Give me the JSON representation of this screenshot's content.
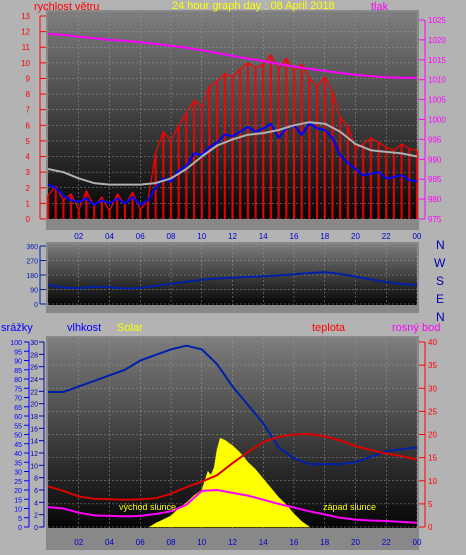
{
  "header": {
    "title": "24 hour graph day : 08 April 2018",
    "wind_label": "rychlost větru",
    "pressure_label": "tlak",
    "compass": [
      "N",
      "W",
      "S",
      "E",
      "N"
    ]
  },
  "lower_labels": {
    "rain": "srážky",
    "humidity": "vlhkost",
    "solar": "Solar",
    "temperature": "teplota",
    "dewpoint": "rosný bod",
    "sunrise": "východ slunce",
    "sunset": "západ slunce"
  },
  "colors": {
    "wind_gust": "#ff0000",
    "wind_avg": "#0000ff",
    "wind_dir_avg": "#b0b0b0",
    "pressure": "#ff00ff",
    "direction": "#0020aa",
    "humidity": "#0020aa",
    "temperature": "#dd0000",
    "dewpoint": "#ff00ff",
    "solar": "#ffff00",
    "rain": "#0000ff"
  },
  "chart_data": [
    {
      "type": "line",
      "name": "wind-pressure",
      "x_ticks": [
        "02",
        "04",
        "06",
        "08",
        "10",
        "12",
        "14",
        "16",
        "18",
        "20",
        "22",
        "00"
      ],
      "y_left_ticks": [
        "0",
        "1",
        "2",
        "3",
        "4",
        "5",
        "6",
        "7",
        "8",
        "9",
        "10",
        "11",
        "12",
        "13"
      ],
      "y_right_ticks": [
        "975",
        "980",
        "985",
        "990",
        "995",
        "1000",
        "1005",
        "1010",
        "1015",
        "1020",
        "1025"
      ],
      "y_left_range": [
        0,
        13
      ],
      "y_right_range": [
        975,
        1026
      ],
      "x_range": [
        0,
        24
      ],
      "series": [
        {
          "name": "rychlost větru",
          "axis": "left",
          "role": "gust",
          "x": [
            0,
            0.5,
            1,
            1.5,
            2,
            2.5,
            3,
            3.5,
            4,
            4.5,
            5,
            5.5,
            6,
            6.5,
            7,
            7.5,
            8,
            8.5,
            9,
            9.5,
            10,
            10.5,
            11,
            11.5,
            12,
            12.5,
            13,
            13.5,
            14,
            14.5,
            15,
            15.5,
            16,
            16.5,
            17,
            17.5,
            18,
            18.5,
            19,
            19.5,
            20,
            20.5,
            21,
            21.5,
            22,
            22.5,
            23,
            23.5,
            24
          ],
          "y": [
            1.5,
            2.1,
            1.2,
            1.6,
            0.6,
            1.8,
            0.8,
            1.4,
            0.5,
            1.6,
            0.9,
            1.7,
            0.6,
            1.2,
            4.2,
            5.6,
            5.0,
            6.0,
            6.8,
            7.6,
            7.2,
            8.5,
            8.8,
            9.3,
            9.1,
            9.6,
            10.0,
            9.7,
            9.9,
            10.5,
            9.6,
            10.3,
            9.5,
            9.9,
            9.0,
            8.5,
            9.1,
            8.2,
            6.5,
            6.0,
            4.5,
            4.8,
            5.2,
            4.9,
            4.6,
            4.4,
            4.8,
            4.5,
            4.4
          ]
        },
        {
          "name": "",
          "axis": "left",
          "role": "average",
          "x": [
            0,
            0.5,
            1,
            1.5,
            2,
            2.5,
            3,
            3.5,
            4,
            4.5,
            5,
            5.5,
            6,
            6.5,
            7,
            7.5,
            8,
            8.5,
            9,
            9.5,
            10,
            10.5,
            11,
            11.5,
            12,
            12.5,
            13,
            13.5,
            14,
            14.5,
            15,
            15.5,
            16,
            16.5,
            17,
            17.5,
            18,
            18.5,
            19,
            19.5,
            20,
            20.5,
            21,
            21.5,
            22,
            22.5,
            23,
            23.5,
            24
          ],
          "y": [
            2.2,
            2.0,
            1.5,
            1.2,
            1.1,
            1.3,
            0.9,
            1.2,
            1.0,
            1.3,
            1.0,
            1.4,
            0.9,
            1.2,
            2.0,
            2.6,
            2.4,
            3.1,
            3.4,
            4.2,
            4.1,
            4.6,
            4.9,
            5.4,
            5.3,
            5.6,
            5.9,
            5.6,
            5.8,
            6.1,
            5.2,
            5.8,
            6.0,
            5.4,
            6.1,
            5.8,
            5.7,
            5.2,
            4.1,
            3.6,
            3.2,
            2.8,
            2.9,
            3.0,
            2.6,
            2.7,
            2.8,
            2.5,
            2.4
          ]
        },
        {
          "name": "",
          "axis": "left",
          "role": "trend",
          "x": [
            0,
            1,
            2,
            3,
            4,
            5,
            6,
            7,
            8,
            9,
            10,
            11,
            12,
            13,
            14,
            15,
            16,
            17,
            18,
            19,
            20,
            21,
            22,
            23,
            24
          ],
          "y": [
            3.2,
            3.0,
            2.6,
            2.3,
            2.2,
            2.2,
            2.2,
            2.3,
            2.6,
            3.2,
            4.0,
            4.7,
            5.1,
            5.4,
            5.5,
            5.7,
            6.0,
            6.2,
            6.1,
            5.6,
            4.8,
            4.4,
            4.3,
            4.2,
            4.0
          ]
        },
        {
          "name": "tlak",
          "axis": "right",
          "role": "pressure",
          "x": [
            0,
            1,
            2,
            3,
            4,
            5,
            6,
            7,
            8,
            9,
            10,
            11,
            12,
            13,
            14,
            15,
            16,
            17,
            18,
            19,
            20,
            21,
            22,
            23,
            24
          ],
          "y": [
            1021.5,
            1021.3,
            1020.8,
            1020.4,
            1020.0,
            1019.8,
            1019.4,
            1019.0,
            1018.5,
            1018.0,
            1017.4,
            1016.7,
            1016.0,
            1015.3,
            1014.7,
            1014.0,
            1013.3,
            1012.7,
            1012.2,
            1011.7,
            1011.2,
            1010.9,
            1010.6,
            1010.5,
            1010.5
          ]
        }
      ]
    },
    {
      "type": "line",
      "name": "wind-direction",
      "x_ticks": [
        "02",
        "04",
        "06",
        "08",
        "10",
        "12",
        "14",
        "16",
        "18",
        "20",
        "22",
        "00"
      ],
      "y_ticks": [
        "360",
        "270",
        "180",
        "90",
        "0"
      ],
      "y_range": [
        0,
        360
      ],
      "series": [
        {
          "name": "",
          "x": [
            0,
            1,
            2,
            3,
            4,
            5,
            6,
            7,
            8,
            9,
            10,
            11,
            12,
            13,
            14,
            15,
            16,
            17,
            18,
            19,
            20,
            21,
            22,
            23,
            24
          ],
          "y": [
            118,
            102,
            98,
            108,
            104,
            96,
            99,
            112,
            125,
            138,
            150,
            158,
            163,
            168,
            172,
            177,
            185,
            192,
            198,
            186,
            170,
            152,
            136,
            124,
            118
          ]
        }
      ]
    },
    {
      "type": "line",
      "name": "humidity-temperature-solar",
      "x_ticks": [
        "02",
        "04",
        "06",
        "08",
        "10",
        "12",
        "14",
        "16",
        "18",
        "20",
        "22",
        "00"
      ],
      "y_rain_ticks": [
        "0",
        "5",
        "10",
        "15",
        "20",
        "25",
        "30",
        "35",
        "40",
        "45",
        "50",
        "55",
        "60",
        "65",
        "70",
        "75",
        "80",
        "85",
        "90",
        "95",
        "100"
      ],
      "y_humidity_ticks": [
        "0",
        "2",
        "4",
        "6",
        "8",
        "10",
        "12",
        "14",
        "16",
        "18",
        "20",
        "22",
        "24",
        "26",
        "28",
        "30"
      ],
      "y_temp_ticks": [
        "0",
        "5",
        "10",
        "15",
        "20",
        "25",
        "30",
        "35",
        "40"
      ],
      "series": [
        {
          "name": "vlhkost",
          "axis": "rain",
          "x": [
            0,
            1,
            2,
            3,
            4,
            5,
            6,
            7,
            8,
            9,
            10,
            11,
            12,
            13,
            14,
            15,
            16,
            17,
            18,
            19,
            20,
            21,
            22,
            23,
            24
          ],
          "y": [
            73,
            73,
            76,
            79,
            82,
            85,
            90,
            93,
            96,
            98,
            96,
            88,
            76,
            66,
            56,
            43,
            37,
            34,
            34,
            34,
            35,
            38,
            41,
            42,
            43
          ]
        },
        {
          "name": "teplota",
          "axis": "temp",
          "x": [
            0,
            1,
            2,
            3,
            4,
            5,
            6,
            7,
            8,
            9,
            10,
            11,
            12,
            13,
            14,
            15,
            16,
            17,
            18,
            19,
            20,
            21,
            22,
            23,
            24
          ],
          "y": [
            8.8,
            7.8,
            6.6,
            6.1,
            6.0,
            5.9,
            6.0,
            6.2,
            7.2,
            8.6,
            9.8,
            11.2,
            13.8,
            16.2,
            18.4,
            19.5,
            20.0,
            20.1,
            19.6,
            18.7,
            17.5,
            16.6,
            15.9,
            15.3,
            14.6
          ]
        },
        {
          "name": "rosný bod",
          "axis": "temp",
          "x": [
            0,
            1,
            2,
            3,
            4,
            5,
            6,
            7,
            8,
            9,
            10,
            11,
            12,
            13,
            14,
            15,
            16,
            17,
            18,
            19,
            20,
            21,
            22,
            23,
            24
          ],
          "y": [
            4.3,
            4.0,
            3.1,
            2.5,
            2.4,
            2.3,
            2.4,
            2.8,
            3.4,
            4.8,
            7.8,
            8.0,
            7.4,
            6.8,
            5.9,
            5.0,
            4.2,
            3.4,
            2.7,
            2.0,
            1.6,
            1.4,
            1.3,
            1.1,
            0.9
          ]
        },
        {
          "name": "Solar",
          "axis": "rain",
          "x": [
            6.6,
            7,
            7.5,
            8,
            8.5,
            9,
            9.5,
            10,
            10.4,
            10.6,
            10.8,
            11,
            11.2,
            11.5,
            12,
            12.5,
            13,
            13.5,
            14,
            14.5,
            15,
            15.5,
            16,
            16.5,
            17
          ],
          "y": [
            0,
            2,
            4,
            6,
            10,
            13,
            17,
            20,
            30,
            28,
            32,
            42,
            48,
            47,
            44,
            40,
            35,
            31,
            26,
            21,
            16,
            12,
            7,
            3,
            0
          ]
        }
      ]
    }
  ]
}
